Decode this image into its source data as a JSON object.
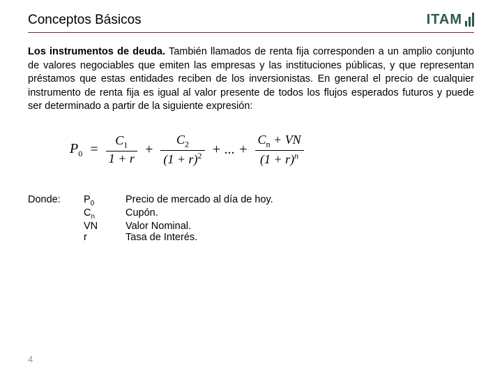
{
  "header": {
    "title": "Conceptos Básicos",
    "logo_text": "ITAM"
  },
  "paragraph": {
    "lead_bold": "Los instrumentos de deuda.",
    "rest": " También llamados de renta fija corresponden a un amplio conjunto de valores negociables que emiten las empresas y las instituciones públicas, y que representan préstamos que estas entidades reciben de los inversionistas. En general el precio de cualquier instrumento de renta fija es igual al valor presente de todos los flujos esperados futuros y puede ser determinado a partir de la siguiente expresión:"
  },
  "formula": {
    "lhs_var": "P",
    "lhs_sub": "0",
    "eq": "=",
    "t1_num_var": "C",
    "t1_num_sub": "1",
    "t1_den": "1 + r",
    "plus": "+",
    "t2_num_var": "C",
    "t2_num_sub": "2",
    "t2_den_base": "(1 + r)",
    "t2_den_sup": "2",
    "dots": "+ ... +",
    "tn_num_left_var": "C",
    "tn_num_left_sub": "n",
    "tn_num_plus": " + ",
    "tn_num_right": "VN",
    "tn_den_base": "(1 + r)",
    "tn_den_sup": "n"
  },
  "legend": {
    "label": "Donde:",
    "rows": [
      {
        "sym": "P",
        "sub": "0",
        "desc": "Precio de mercado al día de hoy."
      },
      {
        "sym": "C",
        "sub": "n",
        "desc": "Cupón."
      },
      {
        "sym": "VN",
        "sub": "",
        "desc": "Valor Nominal."
      },
      {
        "sym": "r",
        "sub": "",
        "desc": "Tasa de Interés."
      }
    ]
  },
  "page_number": "4"
}
